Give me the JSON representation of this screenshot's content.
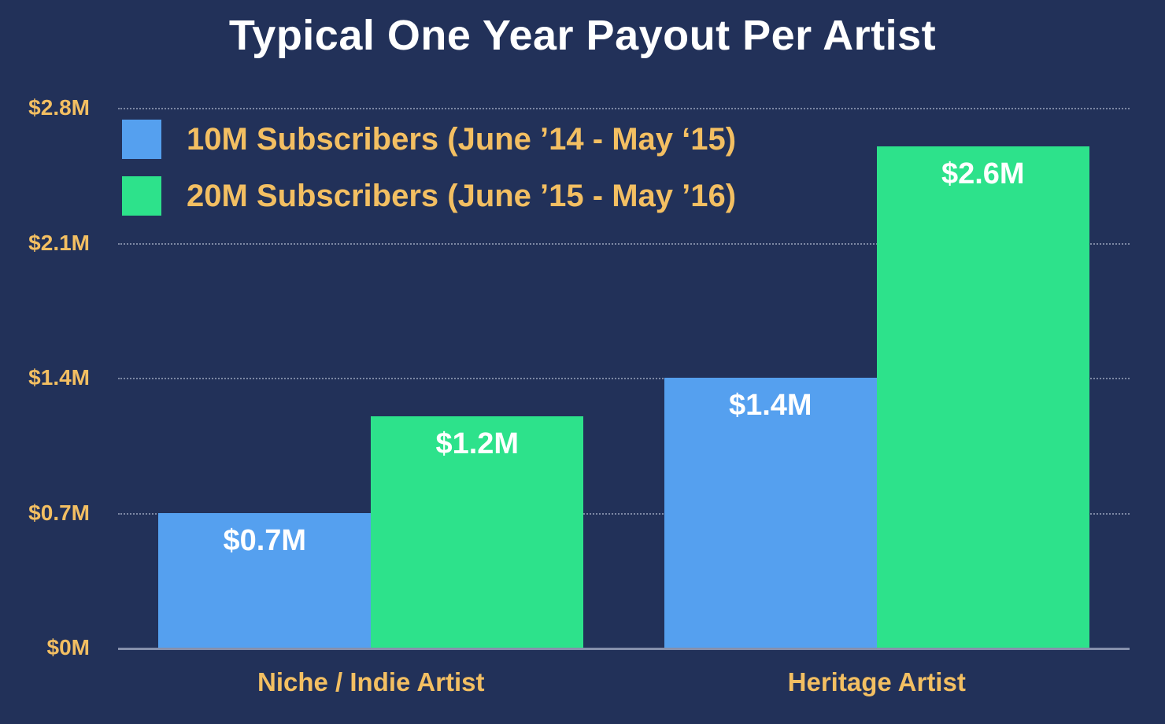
{
  "title": "Typical One Year Payout Per Artist",
  "colors": {
    "background": "#223159",
    "blue": "#55a0ef",
    "green": "#2de28b",
    "gold": "#f3bf62",
    "white": "#ffffff",
    "grid": "#d8dff0"
  },
  "chart_data": {
    "type": "bar",
    "title": "Typical One Year Payout Per Artist",
    "categories": [
      "Niche / Indie Artist",
      "Heritage Artist"
    ],
    "series": [
      {
        "name": "10M Subscribers (June ’14 - May ‘15)",
        "color_key": "blue",
        "values": [
          0.7,
          1.4
        ],
        "labels": [
          "$0.7M",
          "$1.4M"
        ]
      },
      {
        "name": "20M Subscribers (June ’15 - May ’16)",
        "color_key": "green",
        "values": [
          1.2,
          2.6
        ],
        "labels": [
          "$1.2M",
          "$2.6M"
        ]
      }
    ],
    "xlabel": "",
    "ylabel": "",
    "ylim": [
      0,
      2.8
    ],
    "yticks": [
      0,
      0.7,
      1.4,
      2.1,
      2.8
    ],
    "ytick_labels": [
      "$0M",
      "$0.7M",
      "$1.4M",
      "$2.1M",
      "$2.8M"
    ],
    "grid": "horizontal-dotted",
    "legend_position": "top-left",
    "bar_value_label_position": "inside-top"
  }
}
